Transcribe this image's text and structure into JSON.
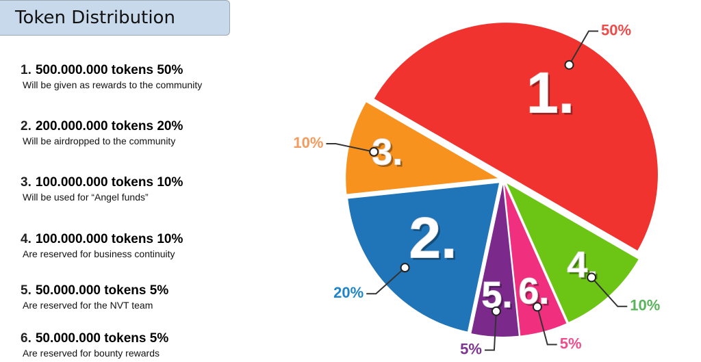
{
  "title": "Token Distribution",
  "items": [
    {
      "number": "1.",
      "heading": "500.000.000 tokens 50%",
      "description": "Will be given as rewards to the community"
    },
    {
      "number": "2.",
      "heading": "200.000.000 tokens 20%",
      "description": "Will be airdropped to the community"
    },
    {
      "number": "3.",
      "heading": "100.000.000 tokens 10%",
      "description": "Will be used for “Angel funds”"
    },
    {
      "number": "4.",
      "heading": "100.000.000 tokens 10%",
      "description": "Are reserved for business continuity"
    },
    {
      "number": "5.",
      "heading": "50.000.000 tokens 5%",
      "description": "Are reserved for the NVT team"
    },
    {
      "number": "6.",
      "heading": "50.000.000 tokens 5%",
      "description": "Are reserved for bounty rewards"
    }
  ],
  "chart_data": {
    "type": "pie",
    "categories": [
      "1.",
      "4.",
      "6.",
      "5.",
      "2.",
      "3."
    ],
    "values": [
      50,
      10,
      5,
      5,
      20,
      10
    ],
    "value_labels": [
      "50%",
      "10%",
      "5%",
      "5%",
      "20%",
      "10%"
    ],
    "colors": [
      "#f0332f",
      "#6cc414",
      "#f0307f",
      "#7b2a8c",
      "#1f75b8",
      "#f7921e"
    ],
    "label_colors": [
      "#ef4a4a",
      "#58b45a",
      "#ef4d8c",
      "#7b3490",
      "#1f85c8",
      "#f39a5e"
    ]
  }
}
